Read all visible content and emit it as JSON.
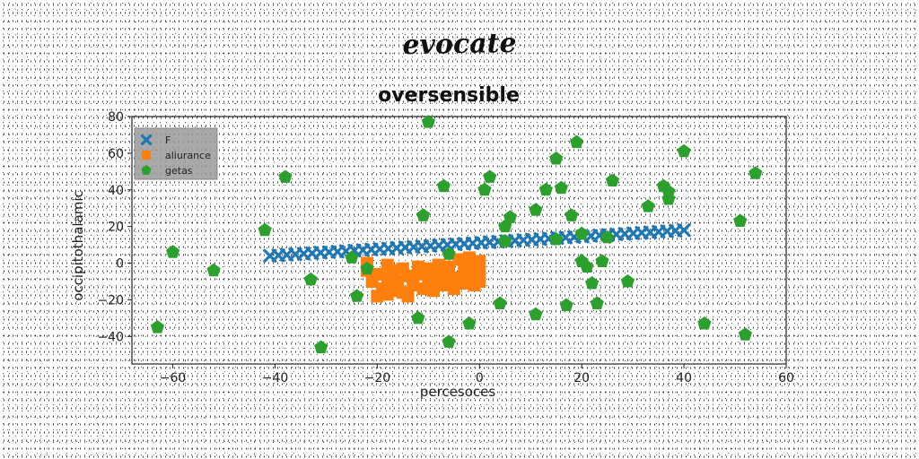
{
  "suptitle": "evocate",
  "chart_data": {
    "type": "scatter",
    "title": "oversensible",
    "xlabel": "percesoces",
    "ylabel": "occipitothalamic",
    "xlim": [
      -68,
      60
    ],
    "ylim": [
      -55,
      80
    ],
    "xticks": [
      -60,
      -40,
      -20,
      0,
      20,
      40,
      60
    ],
    "yticks": [
      -40,
      -20,
      0,
      20,
      40,
      60,
      80
    ],
    "grid": false,
    "legend": "top-left",
    "series": [
      {
        "name": "F",
        "marker": "x",
        "color": "#1f77b4",
        "line": {
          "x_start": -41,
          "x_end": 40,
          "y_start": 4,
          "y_end": 18,
          "count": 50
        }
      },
      {
        "name": "aliurance",
        "marker": "square",
        "color": "#ff7f0e",
        "points": [
          [
            -22,
            -4
          ],
          [
            -20,
            -6
          ],
          [
            -18,
            -8
          ],
          [
            -16,
            -10
          ],
          [
            -14,
            -7
          ],
          [
            -12,
            -5
          ],
          [
            -10,
            -9
          ],
          [
            -8,
            -6
          ],
          [
            -6,
            -4
          ],
          [
            -4,
            -8
          ],
          [
            -2,
            -6
          ],
          [
            0,
            -5
          ],
          [
            -21,
            -10
          ],
          [
            -19,
            -14
          ],
          [
            -17,
            -12
          ],
          [
            -15,
            -16
          ],
          [
            -13,
            -12
          ],
          [
            -11,
            -14
          ],
          [
            -9,
            -10
          ],
          [
            -7,
            -12
          ],
          [
            -5,
            -14
          ],
          [
            -3,
            -11
          ],
          [
            -1,
            -12
          ],
          [
            0,
            -10
          ],
          [
            -20,
            -18
          ],
          [
            -18,
            -17
          ],
          [
            -16,
            -15
          ],
          [
            -14,
            -18
          ],
          [
            -12,
            -2
          ],
          [
            -10,
            -3
          ],
          [
            -8,
            -1
          ],
          [
            -6,
            -2
          ],
          [
            -4,
            2
          ],
          [
            -2,
            3
          ],
          [
            0,
            1
          ],
          [
            -1,
            -2
          ],
          [
            -22,
            0
          ],
          [
            -18,
            -1
          ],
          [
            -15,
            -3
          ],
          [
            -11,
            -6
          ],
          [
            -7,
            -8
          ],
          [
            -3,
            -3
          ],
          [
            -13,
            -10
          ],
          [
            -9,
            -15
          ],
          [
            -5,
            -9
          ],
          [
            -17,
            -4
          ]
        ]
      },
      {
        "name": "getas",
        "marker": "pentagon",
        "color": "#2ca02c",
        "points": [
          [
            -63,
            -35
          ],
          [
            -60,
            6
          ],
          [
            -52,
            -4
          ],
          [
            -42,
            18
          ],
          [
            -38,
            47
          ],
          [
            -33,
            -9
          ],
          [
            -31,
            -46
          ],
          [
            -25,
            3
          ],
          [
            -24,
            -18
          ],
          [
            -22,
            -3
          ],
          [
            -12,
            -30
          ],
          [
            -11,
            26
          ],
          [
            -10,
            77
          ],
          [
            -7,
            42
          ],
          [
            -6,
            5
          ],
          [
            -6,
            -43
          ],
          [
            -2,
            -33
          ],
          [
            1,
            40
          ],
          [
            2,
            47
          ],
          [
            4,
            -22
          ],
          [
            5,
            12
          ],
          [
            5,
            20
          ],
          [
            6,
            25
          ],
          [
            11,
            29
          ],
          [
            11,
            -28
          ],
          [
            13,
            40
          ],
          [
            15,
            57
          ],
          [
            15,
            13
          ],
          [
            16,
            41
          ],
          [
            17,
            -23
          ],
          [
            18,
            26
          ],
          [
            19,
            66
          ],
          [
            20,
            16
          ],
          [
            20,
            1
          ],
          [
            21,
            -2
          ],
          [
            22,
            -11
          ],
          [
            23,
            -22
          ],
          [
            24,
            1
          ],
          [
            25,
            14
          ],
          [
            26,
            45
          ],
          [
            29,
            -10
          ],
          [
            33,
            31
          ],
          [
            36,
            42
          ],
          [
            37,
            39
          ],
          [
            37,
            35
          ],
          [
            40,
            61
          ],
          [
            44,
            -33
          ],
          [
            51,
            23
          ],
          [
            52,
            -39
          ],
          [
            54,
            49
          ]
        ]
      }
    ]
  }
}
